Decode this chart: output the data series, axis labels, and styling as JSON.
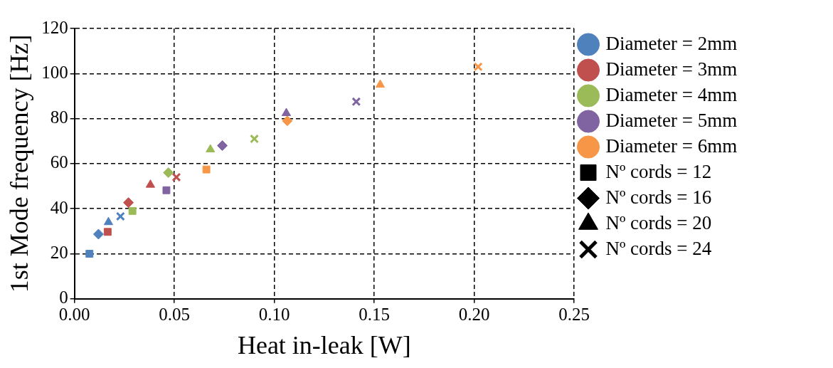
{
  "chart_data": {
    "type": "scatter",
    "xlabel": "Heat in-leak [W]",
    "ylabel": "1st Mode frequency [Hz]",
    "xlim": [
      0,
      0.25
    ],
    "xticks": [
      {
        "value": 0,
        "label": "0.00"
      },
      {
        "value": 0.05,
        "label": "0.05"
      },
      {
        "value": 0.1,
        "label": "0.10"
      },
      {
        "value": 0.15,
        "label": "0.15"
      },
      {
        "value": 0.2,
        "label": "0.20"
      },
      {
        "value": 0.25,
        "label": "0.25"
      }
    ],
    "ylim": [
      0,
      120
    ],
    "yticks": [
      0,
      20,
      40,
      60,
      80,
      100,
      120
    ],
    "grid": true,
    "legend": "top right",
    "series": [
      {
        "name": "Diameter = 2mm",
        "color": "#4f81bd",
        "marker": [
          "square",
          "diamond",
          "triangle",
          "cross"
        ],
        "x": [
          0.0075,
          0.012,
          0.017,
          0.023
        ],
        "values": [
          20,
          28.7,
          34,
          36.6
        ]
      },
      {
        "name": "Diameter = 3mm",
        "color": "#c0504d",
        "marker": [
          "square",
          "diamond",
          "triangle",
          "cross"
        ],
        "x": [
          0.0166,
          0.027,
          0.038,
          0.051
        ],
        "values": [
          29.7,
          42.7,
          50.6,
          54
        ]
      },
      {
        "name": "Diameter = 4mm",
        "color": "#9bbb59",
        "marker": [
          "square",
          "diamond",
          "triangle",
          "cross"
        ],
        "x": [
          0.029,
          0.047,
          0.068,
          0.09
        ],
        "values": [
          39,
          56,
          66.3,
          71
        ]
      },
      {
        "name": "Diameter = 5mm",
        "color": "#8064a2",
        "marker": [
          "square",
          "diamond",
          "triangle",
          "cross"
        ],
        "x": [
          0.046,
          0.074,
          0.106,
          0.141
        ],
        "values": [
          48.2,
          68,
          82.4,
          87.5
        ]
      },
      {
        "name": "Diameter = 6mm",
        "color": "#f79646",
        "marker": [
          "square",
          "diamond",
          "triangle",
          "cross"
        ],
        "x": [
          0.066,
          0.1065,
          0.153,
          0.202
        ],
        "values": [
          57.4,
          79,
          95,
          103
        ]
      },
      {
        "name": "Nº cords = 12",
        "color": "#000000",
        "marker": "square"
      },
      {
        "name": "Nº cords = 16",
        "color": "#000000",
        "marker": "diamond"
      },
      {
        "name": "Nº cords = 20",
        "color": "#000000",
        "marker": "triangle"
      },
      {
        "name": "Nº cords = 24",
        "color": "#000000",
        "marker": "cross"
      }
    ]
  }
}
